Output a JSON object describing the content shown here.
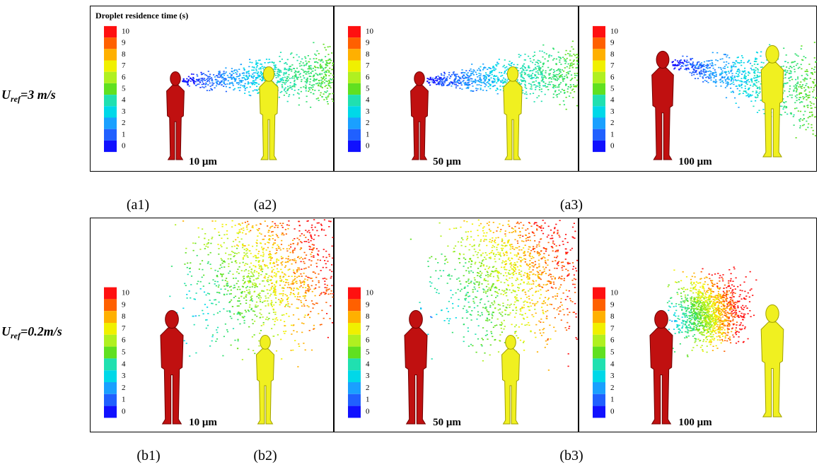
{
  "legend_title": "Droplet residence time (s)",
  "colorbar_ticks": [
    "10",
    "9",
    "8",
    "7",
    "6",
    "5",
    "4",
    "3",
    "2",
    "1",
    "0"
  ],
  "rows": [
    {
      "label": {
        "symbol": "U",
        "subscript": "ref",
        "value": "=3 m/s"
      },
      "panels": [
        {
          "size": "10 μm"
        },
        {
          "size": "50 μm"
        },
        {
          "size": "100 μm"
        }
      ],
      "captions": [
        "(a1)",
        "(a2)",
        "(a3)"
      ]
    },
    {
      "label": {
        "symbol": "U",
        "subscript": "ref",
        "value": "=0.2m/s"
      },
      "panels": [
        {
          "size": "10 μm"
        },
        {
          "size": "50 μm"
        },
        {
          "size": "100 μm"
        }
      ],
      "captions": [
        "(b1)",
        "(b2)",
        "(b3)"
      ]
    }
  ]
}
